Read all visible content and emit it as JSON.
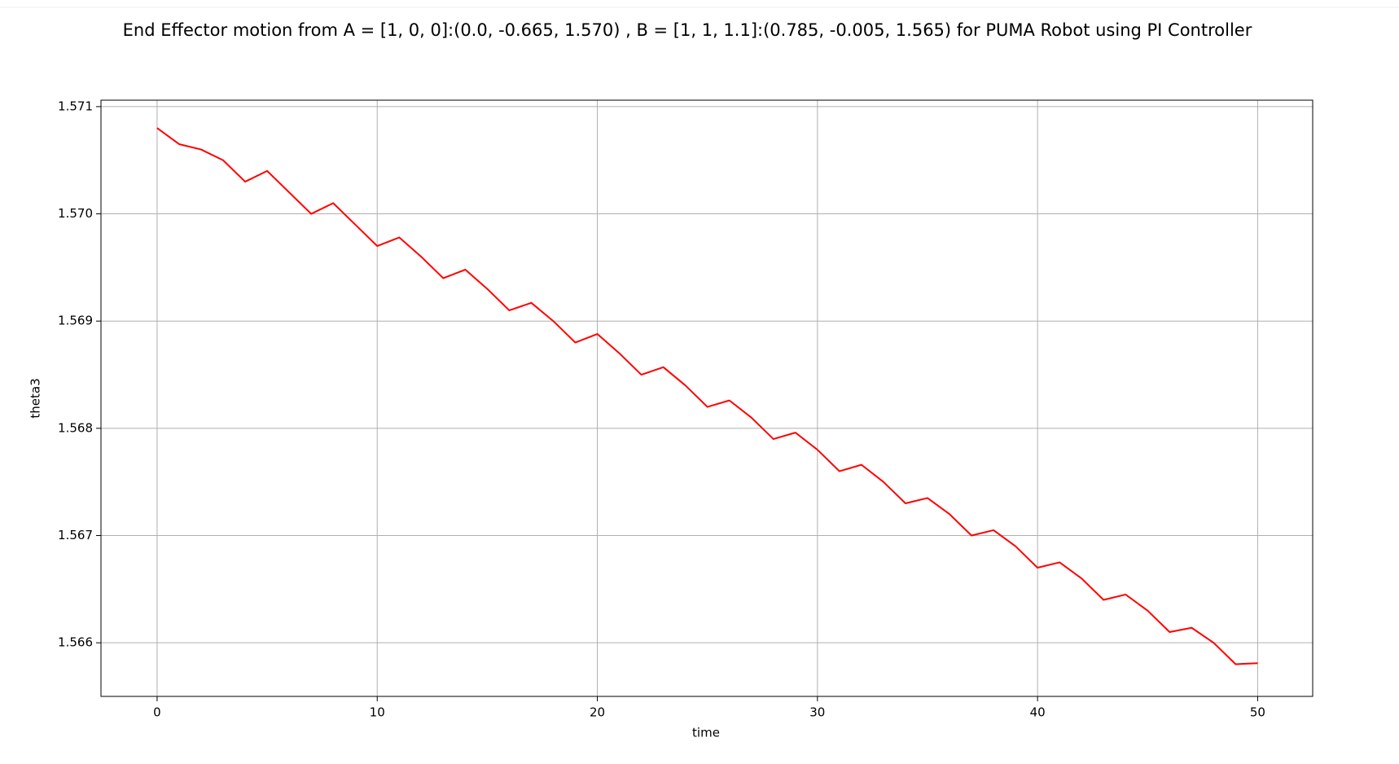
{
  "chart_data": {
    "type": "line",
    "title": "End Effector motion from A = [1, 0, 0]:(0.0, -0.665, 1.570) , B = [1, 1, 1.1]:(0.785, -0.005, 1.565) for PUMA Robot using PI Controller",
    "x_label": "time",
    "y_label": "theta3",
    "x": [
      0,
      1,
      2,
      3,
      4,
      5,
      6,
      7,
      8,
      9,
      10,
      11,
      12,
      13,
      14,
      15,
      16,
      17,
      18,
      19,
      20,
      21,
      22,
      23,
      24,
      25,
      26,
      27,
      28,
      29,
      30,
      31,
      32,
      33,
      34,
      35,
      36,
      37,
      38,
      39,
      40,
      41,
      42,
      43,
      44,
      45,
      46,
      47,
      48,
      49,
      50
    ],
    "series": [
      {
        "name": "theta3",
        "color": "#ff0000",
        "values": [
          1.5708,
          1.57065,
          1.5706,
          1.5705,
          1.5703,
          1.5704,
          1.5702,
          1.57,
          1.5701,
          1.5699,
          1.5697,
          1.56978,
          1.5696,
          1.5694,
          1.56948,
          1.5693,
          1.5691,
          1.56917,
          1.569,
          1.5688,
          1.56888,
          1.5687,
          1.5685,
          1.56857,
          1.5684,
          1.5682,
          1.56826,
          1.5681,
          1.5679,
          1.56796,
          1.5678,
          1.5676,
          1.56766,
          1.5675,
          1.5673,
          1.56735,
          1.5672,
          1.567,
          1.56705,
          1.5669,
          1.5667,
          1.56675,
          1.5666,
          1.5664,
          1.56645,
          1.5663,
          1.5661,
          1.56614,
          1.566,
          1.5658,
          1.56581
        ]
      }
    ],
    "xlim": [
      -2.55,
      52.5
    ],
    "ylim": [
      1.5655,
      1.57106
    ],
    "xticks": [
      0,
      10,
      20,
      30,
      40,
      50
    ],
    "yticks": [
      1.566,
      1.567,
      1.568,
      1.569,
      {
        "value": 1.57,
        "label": "1.570"
      },
      1.571
    ],
    "grid": true
  }
}
